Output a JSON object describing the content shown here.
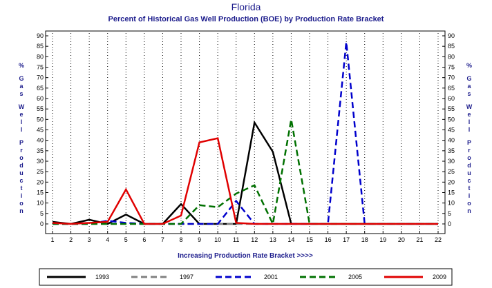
{
  "chart_data": {
    "type": "line",
    "title": "Florida",
    "subtitle": "Percent of Historical Gas Well Production (BOE) by Production Rate Bracket",
    "xlabel": "Increasing Production Rate Bracket >>>>",
    "ylabel": "% Gas Well Production",
    "xlim": [
      1,
      22
    ],
    "ylim": [
      0,
      90
    ],
    "x": [
      1,
      2,
      3,
      4,
      5,
      6,
      7,
      8,
      9,
      10,
      11,
      12,
      13,
      14,
      15,
      16,
      17,
      18,
      19,
      20,
      21,
      22
    ],
    "y_ticks": [
      0,
      5,
      10,
      15,
      20,
      25,
      30,
      35,
      40,
      45,
      50,
      55,
      60,
      65,
      70,
      75,
      80,
      85,
      90
    ],
    "grid": true,
    "legend_position": "bottom",
    "series": [
      {
        "name": "1993",
        "color": "#000000",
        "dash": "solid",
        "values": [
          1,
          0,
          2,
          0,
          4.5,
          0,
          0,
          9.5,
          0,
          0,
          0,
          48.5,
          34.5,
          0,
          0,
          0,
          0,
          0,
          0,
          0,
          0,
          0
        ]
      },
      {
        "name": "1997",
        "color": "#808080",
        "dash": "dashed",
        "values": [
          0,
          0,
          0,
          0,
          0,
          0,
          0,
          0,
          0,
          0,
          0,
          0,
          0,
          0,
          0,
          0,
          0,
          0,
          0,
          0,
          0,
          0
        ]
      },
      {
        "name": "2001",
        "color": "#0000cc",
        "dash": "dashed",
        "values": [
          0,
          0,
          0,
          1.5,
          0.5,
          0,
          0,
          0,
          0,
          0,
          11,
          0,
          0,
          0,
          0,
          0,
          87,
          0,
          0,
          0,
          0,
          0
        ]
      },
      {
        "name": "2005",
        "color": "#007000",
        "dash": "dashed",
        "values": [
          0,
          0,
          0,
          0,
          0,
          0,
          0,
          0,
          9,
          8,
          14.5,
          18.5,
          0,
          50,
          0,
          0,
          0,
          0,
          0,
          0,
          0,
          0
        ]
      },
      {
        "name": "2009",
        "color": "#e00000",
        "dash": "solid",
        "values": [
          0.5,
          0,
          0.5,
          1,
          16.5,
          0,
          0,
          4,
          39,
          41,
          0.5,
          0,
          0,
          0,
          0,
          0,
          0,
          0,
          0,
          0,
          0,
          0
        ]
      }
    ]
  }
}
